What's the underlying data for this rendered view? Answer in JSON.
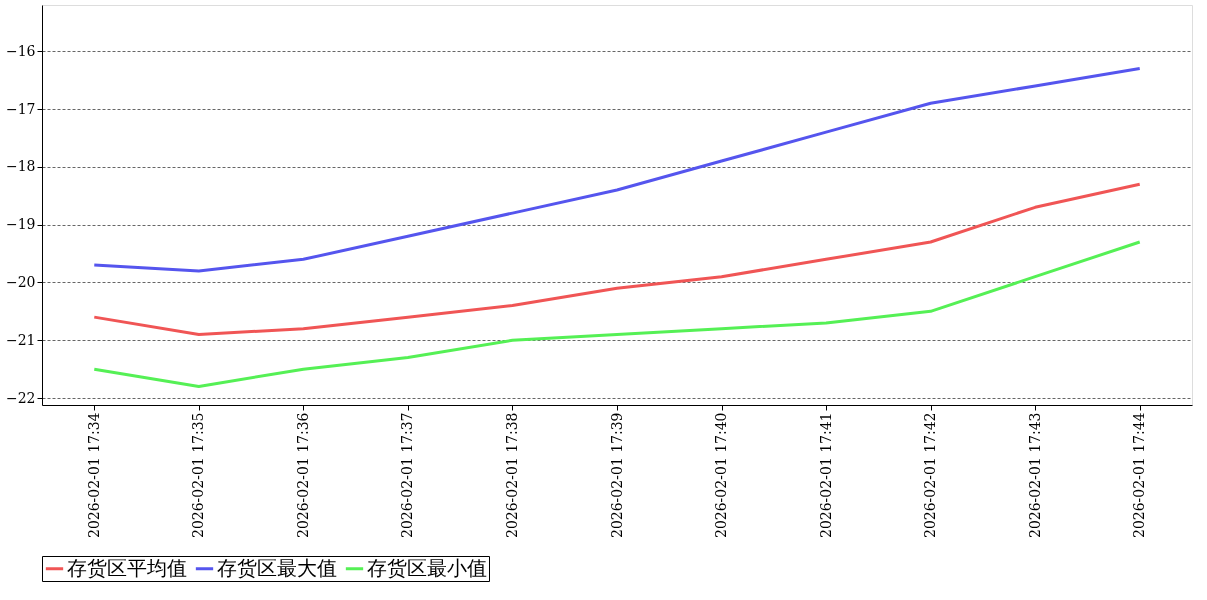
{
  "chart_data": {
    "type": "line",
    "categories": [
      "2026-02-01 17:34",
      "2026-02-01 17:35",
      "2026-02-01 17:36",
      "2026-02-01 17:37",
      "2026-02-01 17:38",
      "2026-02-01 17:39",
      "2026-02-01 17:40",
      "2026-02-01 17:41",
      "2026-02-01 17:42",
      "2026-02-01 17:43",
      "2026-02-01 17:44"
    ],
    "series": [
      {
        "name": "存货区平均值",
        "color": "#f05555",
        "values": [
          -20.6,
          -20.9,
          -20.8,
          -20.6,
          -20.4,
          -20.1,
          -19.9,
          -19.6,
          -19.3,
          -18.7,
          -18.3
        ]
      },
      {
        "name": "存货区最大值",
        "color": "#5555ee",
        "values": [
          -19.7,
          -19.8,
          -19.6,
          -19.2,
          -18.8,
          -18.4,
          -17.9,
          -17.4,
          -16.9,
          -16.6,
          -16.3
        ]
      },
      {
        "name": "存货区最小值",
        "color": "#55f055",
        "values": [
          -21.5,
          -21.8,
          -21.5,
          -21.3,
          -21.0,
          -20.9,
          -20.8,
          -20.7,
          -20.5,
          -19.9,
          -19.3
        ]
      }
    ],
    "ylim": [
      -22.12,
      -15.2
    ],
    "yticks": [
      -22,
      -21,
      -20,
      -19,
      -18,
      -17,
      -16
    ],
    "grid": "y",
    "legend": "bottom",
    "marker": "none",
    "line_style": "solid"
  }
}
